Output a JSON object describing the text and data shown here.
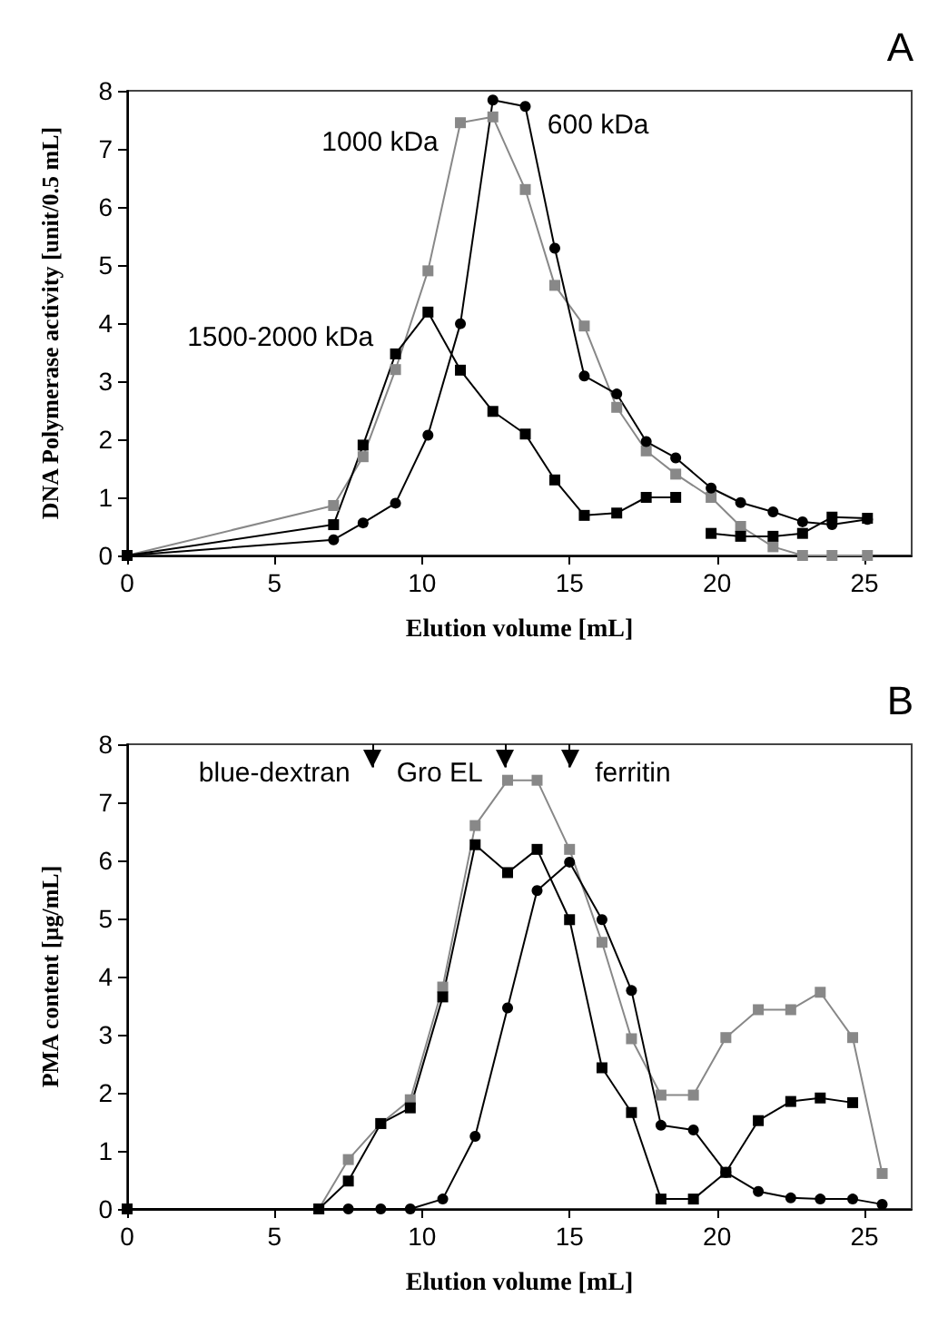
{
  "chart_data": [
    {
      "type": "line",
      "title": "A",
      "xlabel": "Elution volume [mL]",
      "ylabel": "DNA Polymerase activity [unit/0.5 mL]",
      "xlim": [
        0,
        26.6
      ],
      "xticks": [
        0,
        5,
        10,
        15,
        20,
        25
      ],
      "ylim": [
        0,
        8
      ],
      "yticks": [
        0,
        1,
        2,
        3,
        4,
        5,
        6,
        7,
        8
      ],
      "grid": false,
      "legend": false,
      "series": [
        {
          "name": "1000 kDa",
          "color": "#888888",
          "marker": "square",
          "x": [
            0,
            7.0,
            8.0,
            9.1,
            10.2,
            11.3,
            12.4,
            13.5,
            14.5,
            15.5,
            16.6,
            17.6,
            18.6,
            19.8,
            20.8,
            21.9,
            22.9,
            23.9,
            25.1
          ],
          "values": [
            0,
            0.86,
            1.7,
            3.2,
            4.9,
            7.45,
            7.55,
            6.3,
            4.65,
            3.95,
            2.55,
            1.8,
            1.4,
            1.0,
            0.5,
            0.15,
            0,
            0,
            0
          ]
        },
        {
          "name": "1500-2000 kDa",
          "color": "#000000",
          "marker": "square",
          "x": [
            0,
            7.0,
            8.0,
            9.1,
            10.2,
            11.3,
            12.4,
            13.5,
            14.5,
            15.5,
            16.6,
            17.6,
            18.6,
            19.2,
            19.8,
            20.8,
            21.9,
            22.9,
            23.9,
            25.1
          ],
          "values": [
            0,
            0.53,
            1.9,
            3.47,
            4.19,
            3.19,
            2.48,
            2.09,
            1.3,
            0.69,
            0.73,
            1.0,
            1.0,
            null,
            0.38,
            0.33,
            0.33,
            0.38,
            0.66,
            0.64
          ]
        },
        {
          "name": "600 kDa",
          "color": "#000000",
          "marker": "circle",
          "x": [
            0,
            7.0,
            8.0,
            9.1,
            10.2,
            11.3,
            12.4,
            13.5,
            14.5,
            15.5,
            16.6,
            17.6,
            18.6,
            19.8,
            20.8,
            21.9,
            22.9,
            23.9,
            25.1
          ],
          "values": [
            0,
            0.27,
            0.56,
            0.9,
            2.07,
            3.99,
            7.84,
            7.73,
            5.29,
            3.09,
            2.78,
            1.96,
            1.68,
            1.16,
            0.91,
            0.75,
            0.58,
            0.53,
            0.62
          ]
        }
      ]
    },
    {
      "type": "line",
      "title": "B",
      "xlabel": "Elution volume [mL]",
      "ylabel": "PMA content [µg/mL]",
      "xlim": [
        0,
        26.6
      ],
      "xticks": [
        0,
        5,
        10,
        15,
        20,
        25
      ],
      "ylim": [
        0,
        8
      ],
      "yticks": [
        0,
        1,
        2,
        3,
        4,
        5,
        6,
        7,
        8
      ],
      "grid": false,
      "legend": false,
      "ref_lines": [
        {
          "axis": "x",
          "value": 8.3,
          "label": "blue-dextran"
        },
        {
          "axis": "x",
          "value": 12.8,
          "label": "Gro EL"
        },
        {
          "axis": "x",
          "value": 15.0,
          "label": "ferritin"
        }
      ],
      "series": [
        {
          "color": "#888888",
          "marker": "square",
          "x": [
            0,
            6.5,
            7.5,
            8.6,
            9.6,
            10.7,
            11.8,
            12.9,
            13.9,
            15.0,
            16.1,
            17.1,
            18.1,
            19.2,
            20.3,
            21.4,
            22.5,
            23.5,
            24.6,
            25.6
          ],
          "values": [
            0,
            0,
            0.85,
            1.47,
            1.88,
            3.82,
            6.6,
            7.38,
            7.38,
            6.19,
            4.59,
            2.93,
            1.96,
            1.96,
            2.95,
            3.43,
            3.43,
            3.73,
            2.95,
            0.61
          ]
        },
        {
          "color": "#000000",
          "marker": "square",
          "x": [
            0,
            6.5,
            7.5,
            8.6,
            9.6,
            10.7,
            11.8,
            12.9,
            13.9,
            15.0,
            16.1,
            17.1,
            18.1,
            19.2,
            20.3,
            21.4,
            22.5,
            23.5,
            24.6
          ],
          "values": [
            0,
            0,
            0.48,
            1.47,
            1.74,
            3.65,
            6.27,
            5.79,
            6.19,
            4.98,
            2.43,
            1.66,
            0.17,
            0.17,
            0.63,
            1.52,
            1.85,
            1.91,
            1.83
          ]
        },
        {
          "color": "#000000",
          "marker": "circle",
          "x": [
            0,
            6.5,
            7.5,
            8.6,
            9.6,
            10.7,
            11.8,
            12.9,
            13.9,
            15.0,
            16.1,
            17.1,
            18.1,
            19.2,
            20.3,
            21.4,
            22.5,
            23.5,
            24.6,
            25.6
          ],
          "values": [
            0,
            0,
            0,
            0,
            0,
            0.17,
            1.25,
            3.46,
            5.48,
            5.97,
            4.98,
            3.76,
            1.44,
            1.36,
            0.63,
            0.3,
            0.19,
            0.17,
            0.17,
            0.08
          ]
        }
      ]
    }
  ]
}
